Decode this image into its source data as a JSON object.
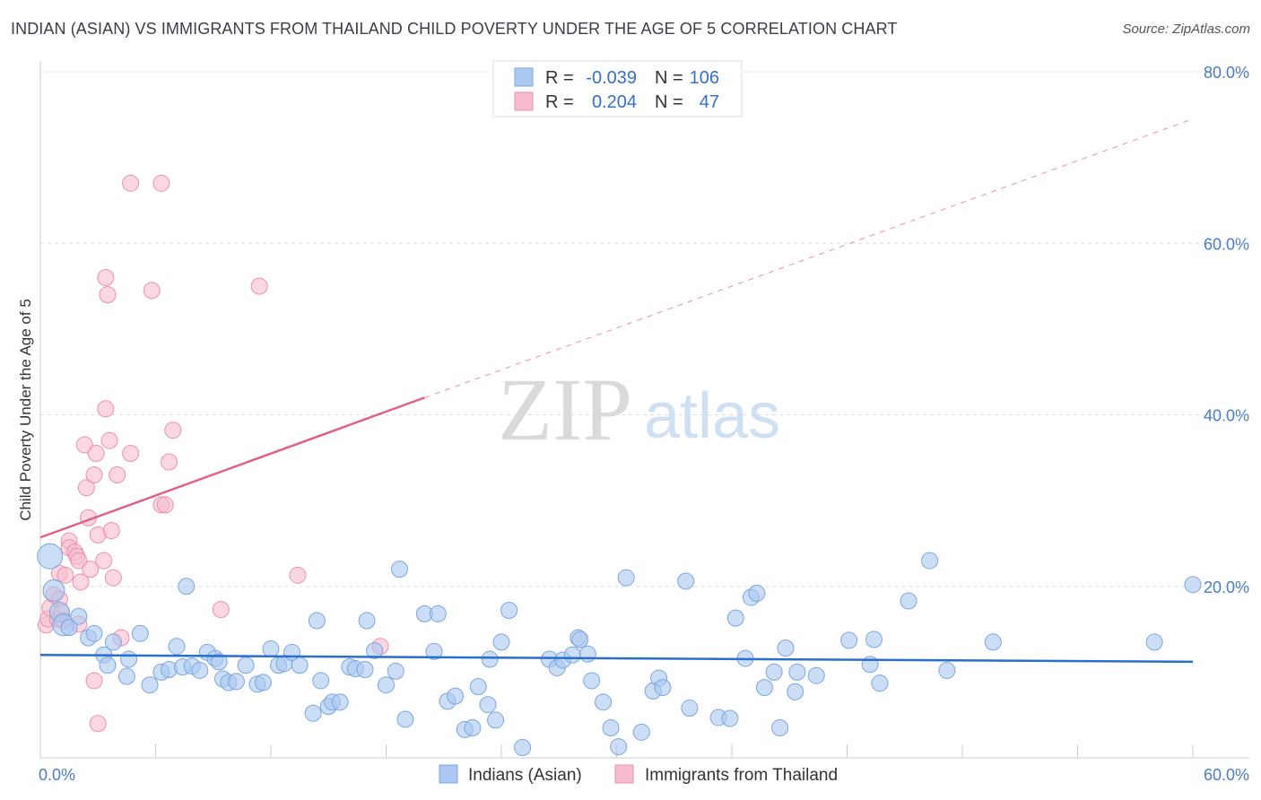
{
  "header": {
    "title": "INDIAN (ASIAN) VS IMMIGRANTS FROM THAILAND CHILD POVERTY UNDER THE AGE OF 5 CORRELATION CHART",
    "source": "Source: ZipAtlas.com"
  },
  "watermark": {
    "zip": "ZIP",
    "atlas": "atlas"
  },
  "legend": {
    "r_label": "R =",
    "n_label": "N =",
    "rows": [
      {
        "r": "-0.039",
        "n": "106"
      },
      {
        "r": "0.204",
        "n": "47"
      }
    ]
  },
  "colors": {
    "blue_fill": "#aac8f0",
    "blue_stroke": "#7aa6e0",
    "blue_line": "#2b6fcc",
    "pink_fill": "#f6bccd",
    "pink_stroke": "#ec8fac",
    "pink_line": "#e0608a",
    "grid": "#dddddd",
    "axis_text": "#4a7cc7"
  },
  "chart_data": {
    "type": "scatter",
    "title": "INDIAN (ASIAN) VS IMMIGRANTS FROM THAILAND CHILD POVERTY UNDER THE AGE OF 5 CORRELATION CHART",
    "xlabel": "",
    "ylabel": "Child Poverty Under the Age of 5",
    "xlim": [
      0,
      60
    ],
    "ylim": [
      0,
      80
    ],
    "x_tick_labels": [
      "0.0%",
      "60.0%"
    ],
    "y_tick_labels": [
      "20.0%",
      "40.0%",
      "60.0%",
      "80.0%"
    ],
    "y_ticks": [
      20,
      40,
      60,
      80
    ],
    "x_minor_ticks": [
      6,
      12,
      18,
      24,
      30,
      36,
      42,
      48,
      54,
      60
    ],
    "series": [
      {
        "name": "Indians (Asian)",
        "r": -0.039,
        "n": 106,
        "trend": {
          "x0": 0,
          "y0": 12.0,
          "x1": 60,
          "y1": 11.2
        },
        "points": [
          [
            0.5,
            23.5
          ],
          [
            0.7,
            19.5
          ],
          [
            1.0,
            17
          ],
          [
            1.2,
            15.5
          ],
          [
            1.5,
            15.2
          ],
          [
            2.0,
            16.5
          ],
          [
            2.5,
            14
          ],
          [
            2.8,
            14.5
          ],
          [
            3.3,
            12
          ],
          [
            3.8,
            13.5
          ],
          [
            3.5,
            10.8
          ],
          [
            4.6,
            11.5
          ],
          [
            4.5,
            9.5
          ],
          [
            5.2,
            14.5
          ],
          [
            5.7,
            8.5
          ],
          [
            6.3,
            10
          ],
          [
            6.7,
            10.3
          ],
          [
            7.1,
            13
          ],
          [
            7.4,
            10.6
          ],
          [
            7.6,
            20
          ],
          [
            7.9,
            10.7
          ],
          [
            8.3,
            10.2
          ],
          [
            8.7,
            12.3
          ],
          [
            9.1,
            11.6
          ],
          [
            9.3,
            11.2
          ],
          [
            9.5,
            9.2
          ],
          [
            9.8,
            8.8
          ],
          [
            10.2,
            8.9
          ],
          [
            10.7,
            10.8
          ],
          [
            11.3,
            8.6
          ],
          [
            11.6,
            8.8
          ],
          [
            12.0,
            12.7
          ],
          [
            12.4,
            10.8
          ],
          [
            12.7,
            11.0
          ],
          [
            13.1,
            12.3
          ],
          [
            13.5,
            10.8
          ],
          [
            14.2,
            5.2
          ],
          [
            14.4,
            16
          ],
          [
            14.6,
            9
          ],
          [
            15.0,
            6
          ],
          [
            15.2,
            6.5
          ],
          [
            15.6,
            6.5
          ],
          [
            16.1,
            10.6
          ],
          [
            16.4,
            10.4
          ],
          [
            16.9,
            10.3
          ],
          [
            17.0,
            16
          ],
          [
            17.4,
            12.5
          ],
          [
            18.0,
            8.5
          ],
          [
            18.5,
            10.1
          ],
          [
            18.7,
            22
          ],
          [
            19.0,
            4.5
          ],
          [
            20.0,
            16.8
          ],
          [
            20.5,
            12.4
          ],
          [
            20.7,
            16.8
          ],
          [
            21.2,
            6.6
          ],
          [
            21.6,
            7.2
          ],
          [
            22.1,
            3.3
          ],
          [
            22.5,
            3.5
          ],
          [
            22.8,
            8.3
          ],
          [
            23.4,
            11.5
          ],
          [
            23.3,
            6.2
          ],
          [
            23.7,
            4.4
          ],
          [
            24.0,
            13.5
          ],
          [
            24.4,
            17.2
          ],
          [
            25.1,
            1.2
          ],
          [
            26.5,
            11.5
          ],
          [
            26.9,
            10.5
          ],
          [
            27.2,
            11.4
          ],
          [
            27.7,
            12
          ],
          [
            28.0,
            14
          ],
          [
            28.1,
            13.8
          ],
          [
            28.5,
            12.1
          ],
          [
            28.7,
            9
          ],
          [
            29.3,
            6.5
          ],
          [
            29.7,
            3.5
          ],
          [
            30.1,
            1.3
          ],
          [
            30.5,
            21
          ],
          [
            31.3,
            3
          ],
          [
            31.9,
            7.8
          ],
          [
            32.2,
            9.3
          ],
          [
            32.4,
            8.2
          ],
          [
            33.6,
            20.6
          ],
          [
            33.8,
            5.8
          ],
          [
            35.3,
            4.7
          ],
          [
            35.9,
            4.6
          ],
          [
            36.2,
            16.3
          ],
          [
            36.7,
            11.6
          ],
          [
            37.0,
            18.7
          ],
          [
            37.3,
            19.2
          ],
          [
            37.7,
            8.2
          ],
          [
            38.2,
            10
          ],
          [
            38.5,
            3.5
          ],
          [
            38.8,
            12.8
          ],
          [
            39.3,
            7.7
          ],
          [
            39.4,
            10
          ],
          [
            40.4,
            9.6
          ],
          [
            42.1,
            13.7
          ],
          [
            43.2,
            10.9
          ],
          [
            43.4,
            13.8
          ],
          [
            43.7,
            8.7
          ],
          [
            45.2,
            18.3
          ],
          [
            46.3,
            23
          ],
          [
            47.2,
            10.2
          ],
          [
            49.6,
            13.5
          ],
          [
            58.0,
            13.5
          ],
          [
            60.0,
            20.2
          ]
        ]
      },
      {
        "name": "Immigrants from Thailand",
        "r": 0.204,
        "n": 47,
        "trend": {
          "x0": 0,
          "y0": 25.7,
          "x1": 20,
          "y1": 42.0,
          "dashed_to": {
            "x": 60,
            "y": 74.5
          }
        },
        "points": [
          [
            0.3,
            15.5
          ],
          [
            0.4,
            16.2
          ],
          [
            0.5,
            17.5
          ],
          [
            0.7,
            19
          ],
          [
            0.9,
            16.2
          ],
          [
            1.0,
            18.5
          ],
          [
            1.0,
            21.5
          ],
          [
            1.1,
            17
          ],
          [
            1.2,
            16
          ],
          [
            1.3,
            21.3
          ],
          [
            1.5,
            25.3
          ],
          [
            1.5,
            24.5
          ],
          [
            1.8,
            24
          ],
          [
            1.9,
            23.5
          ],
          [
            2.0,
            23
          ],
          [
            2.1,
            20.5
          ],
          [
            2.0,
            15.6
          ],
          [
            2.4,
            31.5
          ],
          [
            2.3,
            36.5
          ],
          [
            2.6,
            22
          ],
          [
            2.5,
            28
          ],
          [
            2.8,
            9
          ],
          [
            2.9,
            35.5
          ],
          [
            2.8,
            33
          ],
          [
            3.0,
            26
          ],
          [
            3.0,
            4
          ],
          [
            3.4,
            40.7
          ],
          [
            3.3,
            23
          ],
          [
            3.4,
            56
          ],
          [
            3.5,
            54
          ],
          [
            3.6,
            37
          ],
          [
            3.7,
            26.5
          ],
          [
            3.8,
            21
          ],
          [
            4.0,
            33
          ],
          [
            4.2,
            14
          ],
          [
            4.7,
            35.5
          ],
          [
            4.7,
            67
          ],
          [
            5.8,
            54.5
          ],
          [
            6.3,
            29.5
          ],
          [
            6.3,
            67
          ],
          [
            6.5,
            29.5
          ],
          [
            6.7,
            34.5
          ],
          [
            6.9,
            38.2
          ],
          [
            9.4,
            17.3
          ],
          [
            11.4,
            55
          ],
          [
            13.4,
            21.3
          ],
          [
            17.7,
            13
          ]
        ]
      }
    ]
  }
}
